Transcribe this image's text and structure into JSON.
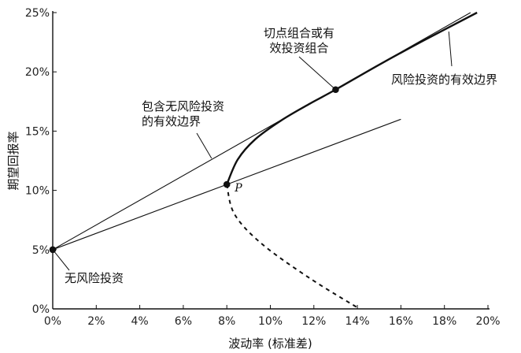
{
  "chart_data": {
    "type": "line",
    "xlabel": "波动率 (标准差)",
    "ylabel": "期望回报率",
    "xlim": [
      0,
      20
    ],
    "ylim": [
      0,
      25
    ],
    "x_ticks": [
      "0%",
      "2%",
      "4%",
      "6%",
      "8%",
      "10%",
      "12%",
      "14%",
      "16%",
      "18%",
      "20%"
    ],
    "y_ticks": [
      "0%",
      "5%",
      "10%",
      "15%",
      "20%",
      "25%"
    ],
    "x_tick_values": [
      0,
      2,
      4,
      6,
      8,
      10,
      12,
      14,
      16,
      18,
      20
    ],
    "y_tick_values": [
      0,
      5,
      10,
      15,
      20,
      25
    ],
    "grid": false,
    "series": [
      {
        "style": "solid-thin",
        "points": [
          [
            0,
            5
          ],
          [
            19.2,
            25
          ]
        ]
      },
      {
        "style": "solid-thin",
        "points": [
          [
            0,
            5
          ],
          [
            16,
            16
          ]
        ]
      },
      {
        "style": "solid-thick",
        "points": [
          [
            8,
            10.5
          ],
          [
            8.5,
            12.6
          ],
          [
            9.3,
            14.3
          ],
          [
            10.5,
            15.9
          ],
          [
            11.8,
            17.3
          ],
          [
            13,
            18.5
          ],
          [
            15,
            20.6
          ],
          [
            17,
            22.6
          ],
          [
            19.5,
            25
          ]
        ]
      },
      {
        "style": "dashed-thick",
        "points": [
          [
            8,
            10.5
          ],
          [
            8.35,
            8
          ],
          [
            9.6,
            5.5
          ],
          [
            11.8,
            2.6
          ],
          [
            14.1,
            0
          ]
        ]
      }
    ],
    "points": [
      {
        "x": 0,
        "y": 5
      },
      {
        "x": 8,
        "y": 10.5,
        "label": "P"
      },
      {
        "x": 13,
        "y": 18.5
      }
    ],
    "annotations": [
      {
        "lines": [
          "切点组合或有",
          "效投资组合"
        ],
        "target": [
          13,
          18.5
        ]
      },
      {
        "lines": [
          "风险投资的有效边界"
        ],
        "target": [
          18.2,
          23.4
        ]
      },
      {
        "lines": [
          "包含无风险投资",
          "的有效边界"
        ],
        "target": [
          7.3,
          12.7
        ]
      },
      {
        "lines": [
          "无风险投资"
        ],
        "target": [
          0,
          5
        ]
      }
    ]
  }
}
